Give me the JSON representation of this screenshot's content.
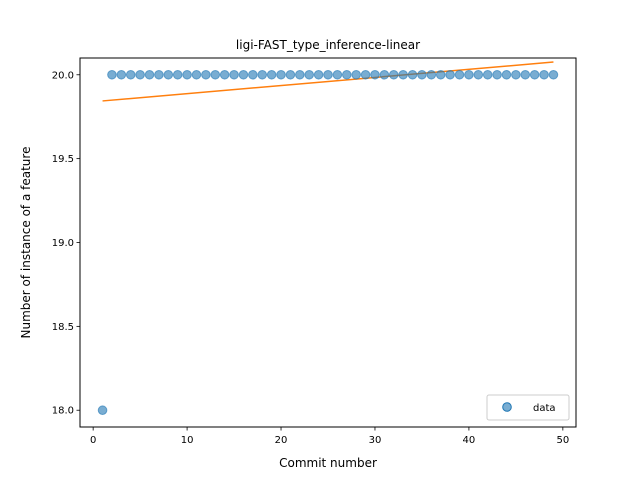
{
  "chart_data": {
    "type": "scatter",
    "title": "ligi-FAST_type_inference-linear",
    "xlabel": "Commit number",
    "ylabel": "Number of instance of a feature",
    "xlim": [
      -1.4,
      51.4
    ],
    "ylim": [
      17.9,
      20.1
    ],
    "xticks": [
      0,
      10,
      20,
      30,
      40,
      50
    ],
    "xtick_labels": [
      "0",
      "10",
      "20",
      "30",
      "40",
      "50"
    ],
    "yticks": [
      18.0,
      18.5,
      19.0,
      19.5,
      20.0
    ],
    "ytick_labels": [
      "18.0",
      "18.5",
      "19.0",
      "19.5",
      "20.0"
    ],
    "grid": false,
    "legend_position": "lower right",
    "series": [
      {
        "name": "data",
        "kind": "scatter",
        "color": "#1f77b4",
        "x": [
          1,
          2,
          3,
          4,
          5,
          6,
          7,
          8,
          9,
          10,
          11,
          12,
          13,
          14,
          15,
          16,
          17,
          18,
          19,
          20,
          21,
          22,
          23,
          24,
          25,
          26,
          27,
          28,
          29,
          30,
          31,
          32,
          33,
          34,
          35,
          36,
          37,
          38,
          39,
          40,
          41,
          42,
          43,
          44,
          45,
          46,
          47,
          48,
          49
        ],
        "y": [
          18,
          20,
          20,
          20,
          20,
          20,
          20,
          20,
          20,
          20,
          20,
          20,
          20,
          20,
          20,
          20,
          20,
          20,
          20,
          20,
          20,
          20,
          20,
          20,
          20,
          20,
          20,
          20,
          20,
          20,
          20,
          20,
          20,
          20,
          20,
          20,
          20,
          20,
          20,
          20,
          20,
          20,
          20,
          20,
          20,
          20,
          20,
          20,
          20
        ]
      },
      {
        "kind": "line",
        "color": "#ff7f0e",
        "x": [
          1,
          49
        ],
        "y": [
          19.844,
          20.076
        ]
      }
    ]
  }
}
